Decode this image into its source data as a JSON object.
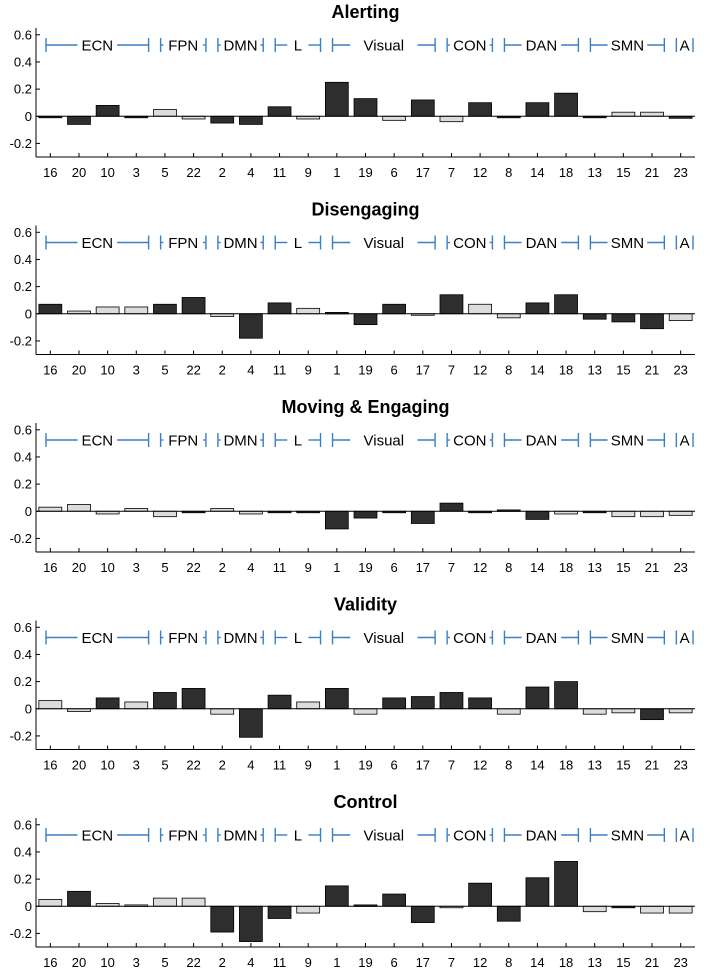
{
  "colors": {
    "dark": "#2e2e2e",
    "light": "#dcdcdc",
    "bar_edge": "#000000",
    "bracket": "#3a7fc1"
  },
  "chart_data": [
    {
      "type": "bar",
      "title": "Alerting",
      "ylim": [
        -0.3,
        0.65
      ],
      "yticks": [
        "0.6",
        "0.4",
        "0.2",
        "0",
        "-0.2"
      ],
      "ytick_values": [
        0.6,
        0.4,
        0.2,
        0,
        -0.2
      ],
      "categories": [
        "16",
        "20",
        "10",
        "3",
        "5",
        "22",
        "2",
        "4",
        "11",
        "9",
        "1",
        "19",
        "6",
        "17",
        "7",
        "12",
        "8",
        "14",
        "18",
        "13",
        "15",
        "21",
        "23"
      ],
      "values": [
        -0.01,
        -0.06,
        0.08,
        -0.01,
        0.05,
        -0.02,
        -0.05,
        -0.06,
        0.07,
        -0.02,
        0.25,
        0.13,
        -0.03,
        0.12,
        -0.04,
        0.1,
        -0.005,
        0.1,
        0.17,
        -0.01,
        0.03,
        0.03,
        -0.015
      ],
      "shading": [
        "dark",
        "dark",
        "dark",
        "dark",
        "light",
        "light",
        "dark",
        "dark",
        "dark",
        "light",
        "dark",
        "dark",
        "light",
        "dark",
        "light",
        "dark",
        "dark",
        "dark",
        "dark",
        "dark",
        "light",
        "light",
        "dark"
      ],
      "networks": [
        "ECN",
        "FPN",
        "DMN",
        "L",
        "Visual",
        "CON",
        "DAN",
        "SMN",
        "A"
      ],
      "network_sizes": [
        4,
        2,
        2,
        2,
        4,
        2,
        3,
        3,
        1
      ]
    },
    {
      "type": "bar",
      "title": "Disengaging",
      "ylim": [
        -0.3,
        0.65
      ],
      "yticks": [
        "0.6",
        "0.4",
        "0.2",
        "0",
        "-0.2"
      ],
      "ytick_values": [
        0.6,
        0.4,
        0.2,
        0,
        -0.2
      ],
      "categories": [
        "16",
        "20",
        "10",
        "3",
        "5",
        "22",
        "2",
        "4",
        "11",
        "9",
        "1",
        "19",
        "6",
        "17",
        "7",
        "12",
        "8",
        "14",
        "18",
        "13",
        "15",
        "21",
        "23"
      ],
      "values": [
        0.07,
        0.02,
        0.05,
        0.05,
        0.07,
        0.12,
        -0.02,
        -0.18,
        0.08,
        0.04,
        0.01,
        -0.08,
        0.07,
        -0.005,
        0.14,
        0.07,
        -0.03,
        0.08,
        0.14,
        -0.04,
        -0.06,
        -0.11,
        -0.05
      ],
      "shading": [
        "dark",
        "light",
        "light",
        "light",
        "dark",
        "dark",
        "light",
        "dark",
        "dark",
        "light",
        "dark",
        "dark",
        "dark",
        "light",
        "dark",
        "light",
        "light",
        "dark",
        "dark",
        "dark",
        "dark",
        "dark",
        "light"
      ],
      "networks": [
        "ECN",
        "FPN",
        "DMN",
        "L",
        "Visual",
        "CON",
        "DAN",
        "SMN",
        "A"
      ],
      "network_sizes": [
        4,
        2,
        2,
        2,
        4,
        2,
        3,
        3,
        1
      ]
    },
    {
      "type": "bar",
      "title": "Moving & Engaging",
      "ylim": [
        -0.3,
        0.65
      ],
      "yticks": [
        "0.6",
        "0.4",
        "0.2",
        "0",
        "-0.2"
      ],
      "ytick_values": [
        0.6,
        0.4,
        0.2,
        0,
        -0.2
      ],
      "categories": [
        "16",
        "20",
        "10",
        "3",
        "5",
        "22",
        "2",
        "4",
        "11",
        "9",
        "1",
        "19",
        "6",
        "17",
        "7",
        "12",
        "8",
        "14",
        "18",
        "13",
        "15",
        "21",
        "23"
      ],
      "values": [
        0.03,
        0.05,
        -0.02,
        0.02,
        -0.04,
        -0.005,
        0.02,
        -0.02,
        -0.01,
        -0.01,
        -0.13,
        -0.05,
        -0.005,
        -0.09,
        0.06,
        -0.01,
        0.01,
        -0.06,
        -0.02,
        -0.01,
        -0.04,
        -0.04,
        -0.03
      ],
      "shading": [
        "light",
        "light",
        "light",
        "light",
        "light",
        "dark",
        "light",
        "light",
        "dark",
        "dark",
        "dark",
        "dark",
        "dark",
        "dark",
        "dark",
        "dark",
        "dark",
        "dark",
        "light",
        "dark",
        "light",
        "light",
        "light"
      ],
      "networks": [
        "ECN",
        "FPN",
        "DMN",
        "L",
        "Visual",
        "CON",
        "DAN",
        "SMN",
        "A"
      ],
      "network_sizes": [
        4,
        2,
        2,
        2,
        4,
        2,
        3,
        3,
        1
      ]
    },
    {
      "type": "bar",
      "title": "Validity",
      "ylim": [
        -0.3,
        0.65
      ],
      "yticks": [
        "0.6",
        "0.4",
        "0.2",
        "0",
        "-0.2"
      ],
      "ytick_values": [
        0.6,
        0.4,
        0.2,
        0,
        -0.2
      ],
      "categories": [
        "16",
        "20",
        "10",
        "3",
        "5",
        "22",
        "2",
        "4",
        "11",
        "9",
        "1",
        "19",
        "6",
        "17",
        "7",
        "12",
        "8",
        "14",
        "18",
        "13",
        "15",
        "21",
        "23"
      ],
      "values": [
        0.06,
        -0.02,
        0.08,
        0.05,
        0.12,
        0.15,
        -0.04,
        -0.21,
        0.1,
        0.05,
        0.15,
        -0.04,
        0.08,
        0.09,
        0.12,
        0.08,
        -0.04,
        0.16,
        0.2,
        -0.04,
        -0.03,
        -0.08,
        -0.03
      ],
      "shading": [
        "light",
        "light",
        "dark",
        "light",
        "dark",
        "dark",
        "light",
        "dark",
        "dark",
        "light",
        "dark",
        "light",
        "dark",
        "dark",
        "dark",
        "dark",
        "light",
        "dark",
        "dark",
        "light",
        "light",
        "dark",
        "light"
      ],
      "networks": [
        "ECN",
        "FPN",
        "DMN",
        "L",
        "Visual",
        "CON",
        "DAN",
        "SMN",
        "A"
      ],
      "network_sizes": [
        4,
        2,
        2,
        2,
        4,
        2,
        3,
        3,
        1
      ]
    },
    {
      "type": "bar",
      "title": "Control",
      "ylim": [
        -0.3,
        0.65
      ],
      "yticks": [
        "0.6",
        "0.4",
        "0.2",
        "0",
        "-0.2"
      ],
      "ytick_values": [
        0.6,
        0.4,
        0.2,
        0,
        -0.2
      ],
      "categories": [
        "16",
        "20",
        "10",
        "3",
        "5",
        "22",
        "2",
        "4",
        "11",
        "9",
        "1",
        "19",
        "6",
        "17",
        "7",
        "12",
        "8",
        "14",
        "18",
        "13",
        "15",
        "21",
        "23"
      ],
      "values": [
        0.05,
        0.11,
        0.02,
        0.01,
        0.06,
        0.06,
        -0.19,
        -0.26,
        -0.09,
        -0.05,
        0.15,
        0.01,
        0.09,
        -0.12,
        -0.01,
        0.17,
        -0.11,
        0.21,
        0.33,
        -0.04,
        -0.005,
        -0.05,
        -0.05
      ],
      "shading": [
        "light",
        "dark",
        "light",
        "light",
        "light",
        "light",
        "dark",
        "dark",
        "dark",
        "light",
        "dark",
        "dark",
        "dark",
        "dark",
        "light",
        "dark",
        "dark",
        "dark",
        "dark",
        "light",
        "dark",
        "light",
        "light"
      ],
      "networks": [
        "ECN",
        "FPN",
        "DMN",
        "L",
        "Visual",
        "CON",
        "DAN",
        "SMN",
        "A"
      ],
      "network_sizes": [
        4,
        2,
        2,
        2,
        4,
        2,
        3,
        3,
        1
      ]
    }
  ]
}
